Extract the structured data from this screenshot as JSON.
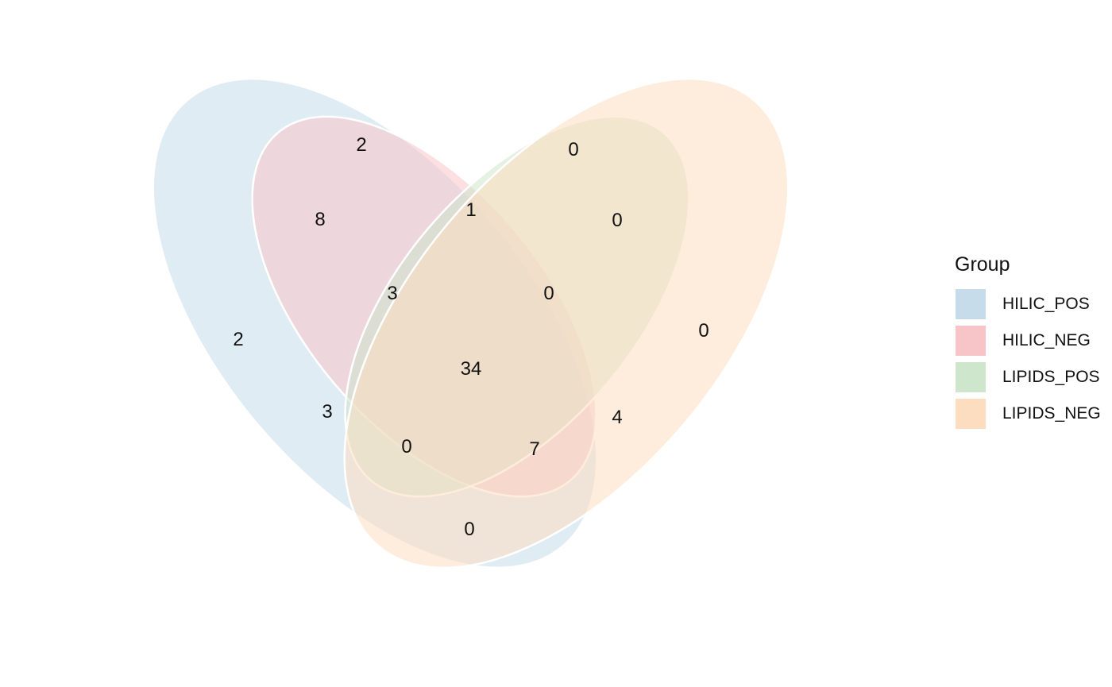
{
  "legend": {
    "title": "Group",
    "items": [
      {
        "label": "HILIC_POS",
        "color": "#c6dcea"
      },
      {
        "label": "HILIC_NEG",
        "color": "#f7c5c8"
      },
      {
        "label": "LIPIDS_POS",
        "color": "#cde6cc"
      },
      {
        "label": "LIPIDS_NEG",
        "color": "#fdddbf"
      }
    ]
  },
  "regions": {
    "hilic_pos_only": "2",
    "hilic_neg_only": "2",
    "lipids_pos_only": "0",
    "lipids_neg_only": "0",
    "hilic_pos_hilic_neg": "8",
    "hilic_neg_lipids_pos": "1",
    "lipids_pos_lipids_neg": "0",
    "hilic_pos_lipids_pos": "3",
    "hilic_neg_lipids_neg": "0",
    "hilic_pos_lipids_neg": "0",
    "hilic_pos_hilic_neg_lipids_pos": "3",
    "hilic_neg_lipids_pos_lipids_neg": "0",
    "hilic_pos_lipids_pos_lipids_neg": "0",
    "hilic_pos_hilic_neg_lipids_neg": "7",
    "hilic_neg_lipids_neg_extra": "4",
    "all_four": "34"
  },
  "colors": {
    "outline": "#ffffff"
  }
}
